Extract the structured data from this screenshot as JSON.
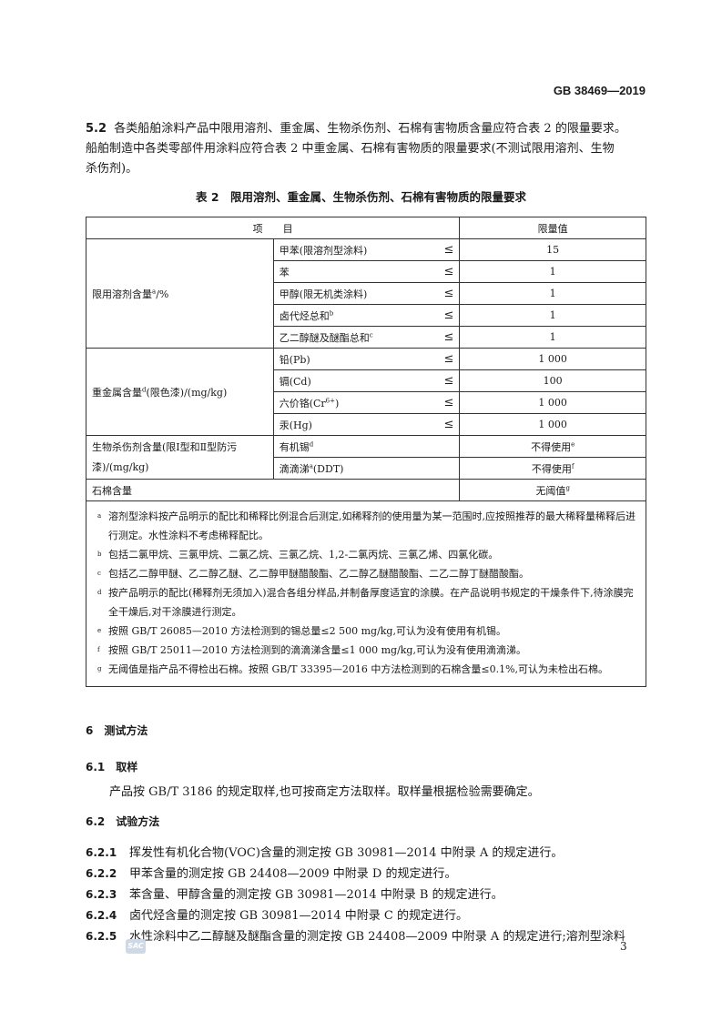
{
  "header": {
    "doc_id": "GB 38469—2019"
  },
  "clause_5_2": {
    "number": "5.2",
    "lines": [
      "各类船舶涂料产品中限用溶剂、重金属、生物杀伤剂、石棉有害物质含量应符合表 2 的限量要求。",
      "船舶制造中各类零部件用涂料应符合表 2 中重金属、石棉有害物质的限量要求(不测试限用溶剂、生物",
      "杀伤剂)。"
    ]
  },
  "table": {
    "caption": "表 2　限用溶剂、重金属、生物杀伤剂、石棉有害物质的限量要求",
    "headers": [
      "项　　目",
      "限量值"
    ],
    "le": "≤",
    "groups": [
      {
        "label": "限用溶剂含量",
        "sup": "a",
        "unit": "/%",
        "rows": [
          {
            "item": "甲苯(限溶剂型涂料)",
            "sup": "",
            "value": "15",
            "vsup": ""
          },
          {
            "item": "苯",
            "sup": "",
            "value": "1",
            "vsup": ""
          },
          {
            "item": "甲醇(限无机类涂料)",
            "sup": "",
            "value": "1",
            "vsup": ""
          },
          {
            "item": "卤代烃总和",
            "sup": "b",
            "value": "1",
            "vsup": ""
          },
          {
            "item": "乙二醇醚及醚酯总和",
            "sup": "c",
            "value": "1",
            "vsup": ""
          }
        ]
      },
      {
        "label": "重金属含量",
        "sup": "d",
        "unit": "(限色漆)/(mg/kg)",
        "rows": [
          {
            "item": "铅(Pb)",
            "sup": "",
            "value": "1 000"
          },
          {
            "item": "镉(Cd)",
            "sup": "",
            "value": "100"
          },
          {
            "item": "六价铬(Cr",
            "sup": "6+",
            "item_tail": ")",
            "value": "1 000"
          },
          {
            "item": "汞(Hg)",
            "sup": "",
            "value": "1 000"
          }
        ]
      },
      {
        "label": "生物杀伤剂含量(限Ⅰ型和Ⅱ型防污漆)/(mg/kg)",
        "rows": [
          {
            "item": "有机锡",
            "sup": "d",
            "value": "不得使用",
            "vsup": "e"
          },
          {
            "item": "滴滴涕",
            "sup": "a",
            "item_tail": "(DDT)",
            "value": "不得使用",
            "vsup": "f"
          }
        ]
      }
    ],
    "asbestos": {
      "label": "石棉含量",
      "value": "无阈值",
      "vsup": "g"
    },
    "footnotes": [
      {
        "mark": "a",
        "text": "溶剂型涂料按产品明示的配比和稀释比例混合后测定,如稀释剂的使用量为某一范围时,应按照推荐的最大稀释量稀释后进行测定。水性涂料不考虑稀释配比。"
      },
      {
        "mark": "b",
        "text": "包括二氯甲烷、三氯甲烷、二氯乙烷、三氯乙烷、1,2-二氯丙烷、三氯乙烯、四氯化碳。"
      },
      {
        "mark": "c",
        "text": "包括乙二醇甲醚、乙二醇乙醚、乙二醇甲醚醋酸酯、乙二醇乙醚醋酸酯、二乙二醇丁醚醋酸酯。"
      },
      {
        "mark": "d",
        "text": "按产品明示的配比(稀释剂无须加入)混合各组分样品,并制备厚度适宜的涂膜。在产品说明书规定的干燥条件下,待涂膜完全干燥后,对干涂膜进行测定。"
      },
      {
        "mark": "e",
        "text": "按照 GB/T 26085—2010 方法检测到的锡总量≤2 500 mg/kg,可认为没有使用有机锡。"
      },
      {
        "mark": "f",
        "text": "按照 GB/T 25011—2010 方法检测到的滴滴涕含量≤1 000 mg/kg,可认为没有使用滴滴涕。"
      },
      {
        "mark": "g",
        "text": "无阈值是指产品不得检出石棉。按照 GB/T 33395—2016 中方法检测到的石棉含量≤0.1%,可认为未检出石棉。"
      }
    ]
  },
  "section6": {
    "heading": "6　测试方法",
    "s61": {
      "heading": "6.1　取样",
      "text": "产品按 GB/T 3186 的规定取样,也可按商定方法取样。取样量根据检验需要确定。"
    },
    "s62": {
      "heading": "6.2　试验方法",
      "items": [
        {
          "num": "6.2.1",
          "text": "挥发性有机化合物(VOC)含量的测定按 GB 30981—2014 中附录 A 的规定进行。"
        },
        {
          "num": "6.2.2",
          "text": "甲苯含量的测定按 GB 24408—2009 中附录 D 的规定进行。"
        },
        {
          "num": "6.2.3",
          "text": "苯含量、甲醇含量的测定按 GB 30981—2014 中附录 B 的规定进行。"
        },
        {
          "num": "6.2.4",
          "text": "卤代烃含量的测定按 GB 30981—2014 中附录 C 的规定进行。"
        },
        {
          "num": "6.2.5",
          "text": "水性涂料中乙二醇醚及醚酯含量的测定按 GB 24408—2009 中附录 A 的规定进行;溶剂型涂料"
        }
      ]
    }
  },
  "footer": {
    "logo": "SAC",
    "page_number": "3"
  }
}
